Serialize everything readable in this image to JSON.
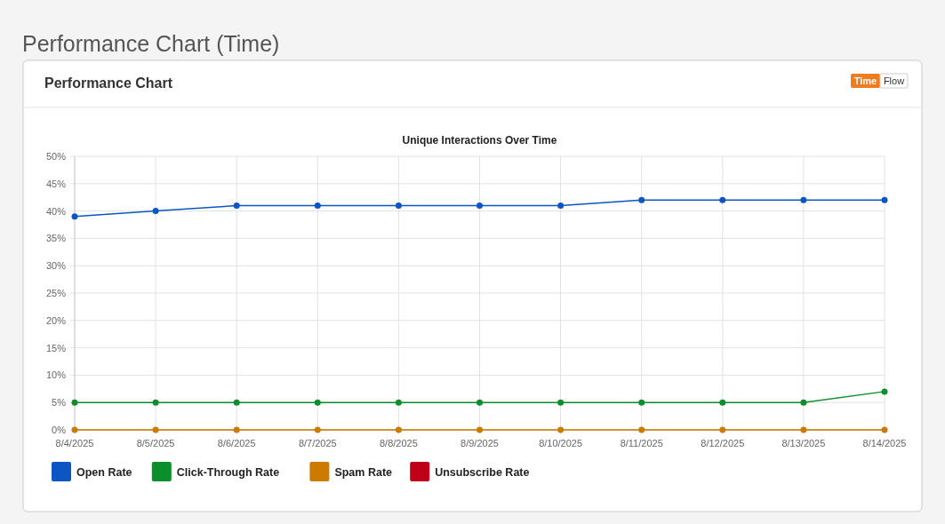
{
  "chart_data": {
    "type": "line",
    "title": "Unique Interactions Over Time",
    "annotations": [
      "Performance Chart (Time)",
      "Performance Chart",
      "Time",
      "Flow"
    ],
    "categories": [
      "8/4/2025",
      "8/5/2025",
      "8/6/2025",
      "8/7/2025",
      "8/8/2025",
      "8/9/2025",
      "8/10/2025",
      "8/11/2025",
      "8/12/2025",
      "8/13/2025",
      "8/14/2025"
    ],
    "series": [
      {
        "name": "Open Rate",
        "color": "#0b56c4",
        "values": [
          39,
          40,
          41,
          41,
          41,
          41,
          41,
          42,
          42,
          42,
          42
        ]
      },
      {
        "name": "Click-Through Rate",
        "color": "#0b8f2a",
        "values": [
          5,
          5,
          5,
          5,
          5,
          5,
          5,
          5,
          5,
          5,
          7
        ]
      },
      {
        "name": "Spam Rate",
        "color": "#cc7a00",
        "values": [
          0,
          0,
          0,
          0,
          0,
          0,
          0,
          0,
          0,
          0,
          0
        ]
      },
      {
        "name": "Unsubscribe Rate",
        "color": "#c00018",
        "values": [
          null,
          null,
          null,
          null,
          null,
          null,
          null,
          null,
          null,
          null,
          null
        ]
      }
    ],
    "ylim": [
      0,
      50
    ],
    "yticks": [
      {
        "value": 0,
        "label": "0%"
      },
      {
        "value": 5,
        "label": "5%"
      },
      {
        "value": 10,
        "label": "10%"
      },
      {
        "value": 15,
        "label": "15%"
      },
      {
        "value": 20,
        "label": "20%"
      },
      {
        "value": 25,
        "label": "25%"
      },
      {
        "value": 30,
        "label": "30%"
      },
      {
        "value": 35,
        "label": "35%"
      },
      {
        "value": 40,
        "label": "40%"
      },
      {
        "value": 45,
        "label": "45%"
      },
      {
        "value": 50,
        "label": "50%"
      }
    ],
    "grid": true,
    "legend": "bottom left",
    "marker": "circle",
    "line_style": "solid"
  }
}
